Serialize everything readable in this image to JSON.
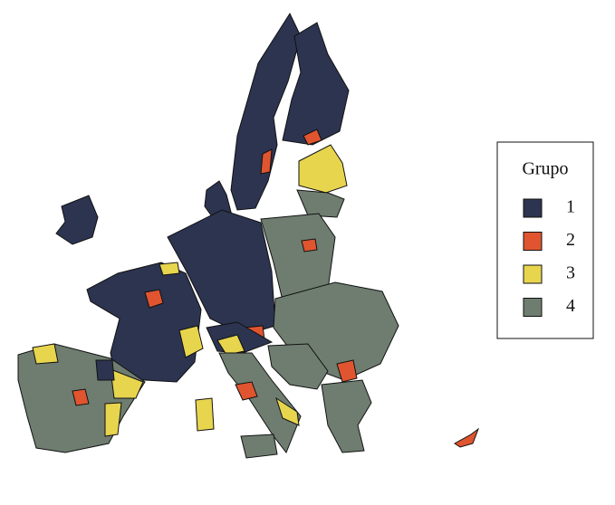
{
  "legend": {
    "title": "Grupo",
    "items": [
      {
        "label": "1",
        "color": "#2c3450"
      },
      {
        "label": "2",
        "color": "#e0552f"
      },
      {
        "label": "3",
        "color": "#e8d54e"
      },
      {
        "label": "4",
        "color": "#6e7d70"
      }
    ]
  }
}
